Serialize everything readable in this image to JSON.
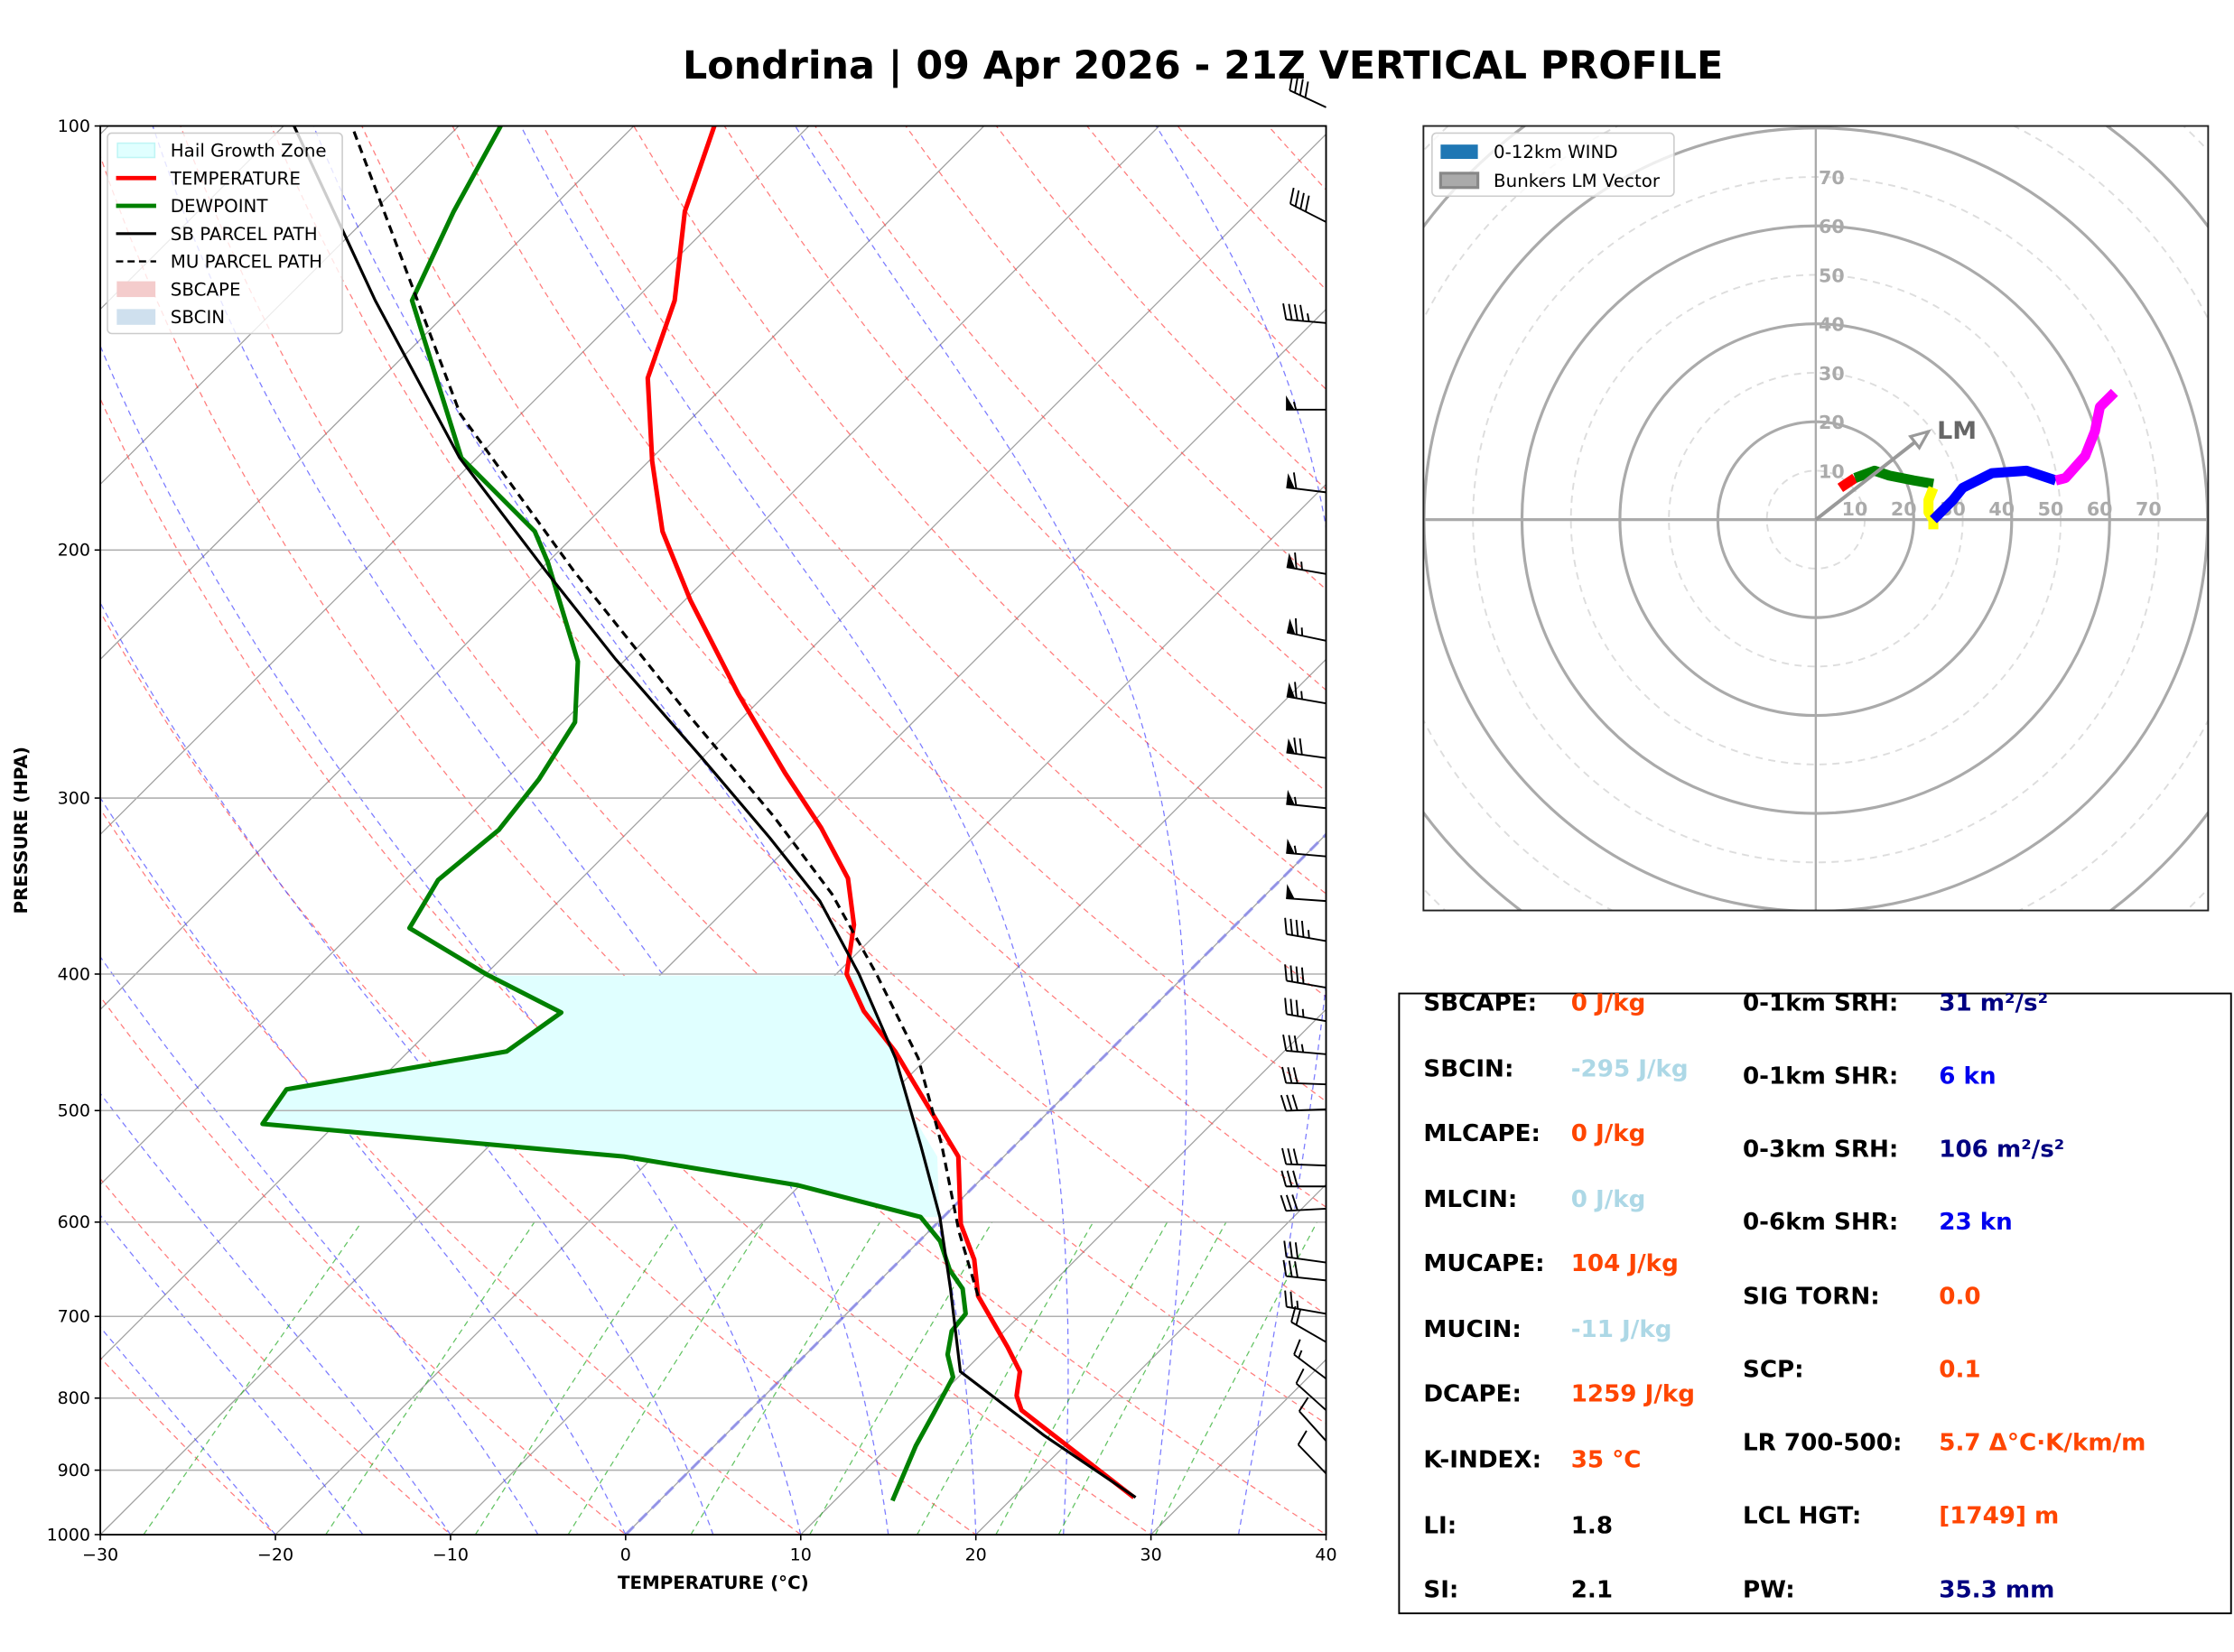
{
  "figure": {
    "title": "Londrina | 09 Apr 2026 - 21Z VERTICAL PROFILE"
  },
  "chart_data": [
    {
      "type": "line",
      "name": "skew-t",
      "xlabel": "TEMPERATURE (°C)",
      "ylabel": "PRESSURE (HPA)",
      "xlim": [
        -30,
        40
      ],
      "ylim": [
        1000,
        100
      ],
      "yscale": "log",
      "xticks": [
        -30,
        -20,
        -10,
        0,
        10,
        20,
        30,
        40
      ],
      "xtick_labels": [
        "−30",
        "−20",
        "−10",
        "0",
        "10",
        "20",
        "30",
        "40"
      ],
      "yticks": [
        1000,
        900,
        800,
        700,
        600,
        500,
        400,
        300,
        200,
        100
      ],
      "ytick_labels": [
        "1000",
        "900",
        "800",
        "700",
        "600",
        "500",
        "400",
        "300",
        "200",
        "100"
      ],
      "grid": true,
      "legend_position": "top-left",
      "legend": [
        {
          "label": "Hail Growth Zone",
          "kind": "patch",
          "color": "#e0ffff",
          "edge": "#bff5f5"
        },
        {
          "label": "TEMPERATURE",
          "kind": "line",
          "color": "#ff0000"
        },
        {
          "label": "DEWPOINT",
          "kind": "line",
          "color": "#008000"
        },
        {
          "label": "SB PARCEL PATH",
          "kind": "line",
          "color": "#000000"
        },
        {
          "label": "MU PARCEL PATH",
          "kind": "dashed",
          "color": "#000000"
        },
        {
          "label": "SBCAPE",
          "kind": "patch",
          "color": "#f4cccc",
          "edge": "#f4cccc"
        },
        {
          "label": "SBCIN",
          "kind": "patch",
          "color": "#cfe0ee",
          "edge": "#cfe0ee"
        }
      ],
      "series": [
        {
          "name": "TEMPERATURE",
          "color": "#ff0000",
          "p": [
            941,
            816,
            797,
            766,
            736,
            677,
            638,
            602,
            539,
            493,
            454,
            425,
            400,
            369,
            342,
            315,
            288,
            253,
            217,
            194,
            173,
            151,
            133,
            115,
            100
          ],
          "t": [
            26.9,
            15.5,
            14.4,
            13.2,
            11.1,
            6.5,
            4.2,
            1.4,
            -2.6,
            -7.6,
            -12.2,
            -16.3,
            -19.4,
            -21.8,
            -24.8,
            -29.2,
            -34.4,
            -41.6,
            -49.7,
            -55.2,
            -59.8,
            -64.8,
            -67.7,
            -72.2,
            -75.4
          ]
        },
        {
          "name": "DEWPOINT",
          "color": "#008000",
          "p": [
            946,
            865,
            822,
            773,
            745,
            717,
            697,
            669,
            649,
            619,
            595,
            565,
            539,
            511,
            483,
            454,
            426,
            400,
            371,
            343,
            316,
            291,
            265,
            240,
            204,
            194,
            172,
            133,
            115,
            100
          ],
          "t": [
            13.3,
            11.5,
            10.7,
            9.7,
            8.1,
            7.0,
            6.8,
            5.2,
            3.4,
            1.2,
            -1.3,
            -10.1,
            -21.7,
            -44.2,
            -44.8,
            -34.4,
            -33.5,
            -40.0,
            -47.0,
            -48.1,
            -47.5,
            -48.1,
            -49.3,
            -52.6,
            -60.0,
            -62.5,
            -70.9,
            -82.7,
            -85.4,
            -87.6
          ]
        },
        {
          "name": "SB PARCEL PATH",
          "color": "#000000",
          "p": [
            941,
            851,
            766,
            669,
            595,
            529,
            459,
            400,
            355,
            320,
            281,
            239,
            207,
            172,
            133,
            100
          ],
          "t": [
            27.0,
            18.3,
            9.8,
            4.5,
            -0.2,
            -5.4,
            -11.8,
            -18.7,
            -25.1,
            -31.6,
            -40.0,
            -50.6,
            -59.6,
            -71.0,
            -84.8,
            -99.4
          ]
        },
        {
          "name": "MU PARCEL PATH",
          "color": "#000000",
          "dashed": true,
          "p": [
            677,
            609,
            529,
            459,
            400,
            351,
            309,
            262,
            207,
            160,
            100
          ],
          "t": [
            6.5,
            1.7,
            -4.2,
            -10.5,
            -17.7,
            -24.8,
            -32.6,
            -43.2,
            -58.0,
            -73.5,
            -96.1
          ]
        }
      ],
      "hail_growth_zone": {
        "p_top": 400,
        "p_bottom": 595
      },
      "wind_barbs": [
        {
          "p": 97,
          "speed_kt": 40,
          "dir_deg": 295
        },
        {
          "p": 117,
          "speed_kt": 40,
          "dir_deg": 297
        },
        {
          "p": 138,
          "speed_kt": 45,
          "dir_deg": 275
        },
        {
          "p": 159,
          "speed_kt": 55,
          "dir_deg": 270
        },
        {
          "p": 182,
          "speed_kt": 60,
          "dir_deg": 277
        },
        {
          "p": 208,
          "speed_kt": 65,
          "dir_deg": 280
        },
        {
          "p": 232,
          "speed_kt": 65,
          "dir_deg": 282
        },
        {
          "p": 257,
          "speed_kt": 65,
          "dir_deg": 280
        },
        {
          "p": 281,
          "speed_kt": 70,
          "dir_deg": 278
        },
        {
          "p": 305,
          "speed_kt": 55,
          "dir_deg": 276
        },
        {
          "p": 330,
          "speed_kt": 55,
          "dir_deg": 275
        },
        {
          "p": 355,
          "speed_kt": 50,
          "dir_deg": 274
        },
        {
          "p": 379,
          "speed_kt": 45,
          "dir_deg": 280
        },
        {
          "p": 409,
          "speed_kt": 40,
          "dir_deg": 280
        },
        {
          "p": 432,
          "speed_kt": 35,
          "dir_deg": 280
        },
        {
          "p": 456,
          "speed_kt": 35,
          "dir_deg": 275
        },
        {
          "p": 479,
          "speed_kt": 30,
          "dir_deg": 272
        },
        {
          "p": 499,
          "speed_kt": 30,
          "dir_deg": 268
        },
        {
          "p": 547,
          "speed_kt": 30,
          "dir_deg": 272
        },
        {
          "p": 566,
          "speed_kt": 30,
          "dir_deg": 270
        },
        {
          "p": 587,
          "speed_kt": 30,
          "dir_deg": 267
        },
        {
          "p": 641,
          "speed_kt": 30,
          "dir_deg": 278
        },
        {
          "p": 660,
          "speed_kt": 30,
          "dir_deg": 276
        },
        {
          "p": 697,
          "speed_kt": 25,
          "dir_deg": 280
        },
        {
          "p": 730,
          "speed_kt": 20,
          "dir_deg": 300
        },
        {
          "p": 775,
          "speed_kt": 15,
          "dir_deg": 307
        },
        {
          "p": 816,
          "speed_kt": 10,
          "dir_deg": 312
        },
        {
          "p": 858,
          "speed_kt": 10,
          "dir_deg": 318
        },
        {
          "p": 905,
          "speed_kt": 10,
          "dir_deg": 316
        }
      ]
    },
    {
      "type": "line",
      "name": "hodograph",
      "legend_position": "top-left",
      "legend": [
        {
          "label": "0-12km WIND",
          "color": "#1f77b4"
        },
        {
          "label": "Bunkers LM Vector",
          "color": "#aaaaaa"
        }
      ],
      "rings_kt": [
        10,
        20,
        30,
        40,
        50,
        60,
        70
      ],
      "ring_labels": [
        "10",
        "20",
        "30",
        "40",
        "50",
        "60",
        "70"
      ],
      "range_kt": 80,
      "segments": [
        {
          "color": "#ff0000",
          "u": [
            5,
            6.5,
            8
          ],
          "v": [
            6.5,
            7.5,
            8.5
          ]
        },
        {
          "color": "#008000",
          "u": [
            8,
            12,
            15,
            20,
            24
          ],
          "v": [
            8.5,
            10,
            9,
            8,
            7.3
          ]
        },
        {
          "color": "#ffff00",
          "u": [
            24,
            23,
            23,
            24,
            24
          ],
          "v": [
            6.5,
            4,
            1.5,
            0,
            -2
          ]
        },
        {
          "color": "#0000ff",
          "u": [
            24,
            28,
            30,
            36,
            43,
            49
          ],
          "v": [
            0,
            4,
            6.5,
            9.5,
            10,
            8
          ]
        },
        {
          "color": "#ff00ff",
          "u": [
            49,
            51,
            55,
            57,
            58,
            61
          ],
          "v": [
            8,
            8.5,
            13,
            18,
            23,
            26
          ]
        }
      ],
      "bunkers_lm": {
        "label": "LM",
        "u": 23,
        "v": 18
      }
    }
  ],
  "stats": {
    "left": [
      {
        "label": "SBCAPE:",
        "value": "0 J/kg",
        "color": "#ff4500"
      },
      {
        "label": "SBCIN:",
        "value": "-295 J/kg",
        "color": "#add8e6"
      },
      {
        "label": "MLCAPE:",
        "value": "0 J/kg",
        "color": "#ff4500"
      },
      {
        "label": "MLCIN:",
        "value": "0 J/kg",
        "color": "#add8e6"
      },
      {
        "label": "MUCAPE:",
        "value": "104 J/kg",
        "color": "#ff4500"
      },
      {
        "label": "MUCIN:",
        "value": "-11 J/kg",
        "color": "#add8e6"
      },
      {
        "label": "DCAPE:",
        "value": "1259 J/kg",
        "color": "#ff4500"
      },
      {
        "label": "K-INDEX:",
        "value": "35 °C",
        "color": "#ff4500"
      },
      {
        "label": "LI:",
        "value": "1.8",
        "color": "#000000"
      },
      {
        "label": "SI:",
        "value": "2.1",
        "color": "#000000"
      }
    ],
    "right": [
      {
        "label": "0-1km SRH:",
        "value": "31 m²/s²",
        "color": "#000080"
      },
      {
        "label": "0-1km SHR:",
        "value": "6 kn",
        "color": "#0000ee"
      },
      {
        "label": "0-3km SRH:",
        "value": "106 m²/s²",
        "color": "#000080"
      },
      {
        "label": "0-6km SHR:",
        "value": "23 kn",
        "color": "#0000ee"
      },
      {
        "label": "SIG TORN:",
        "value": "0.0",
        "color": "#ff4500"
      },
      {
        "label": "SCP:",
        "value": "0.1",
        "color": "#ff4500"
      },
      {
        "label": "LR 700-500:",
        "value": "5.7 Δ°C·K/km/m",
        "color": "#ff4500"
      },
      {
        "label": "LCL HGT:",
        "value": "[1749] m",
        "color": "#ff4500"
      },
      {
        "label": "PW:",
        "value": "35.3 mm",
        "color": "#000080"
      }
    ]
  }
}
